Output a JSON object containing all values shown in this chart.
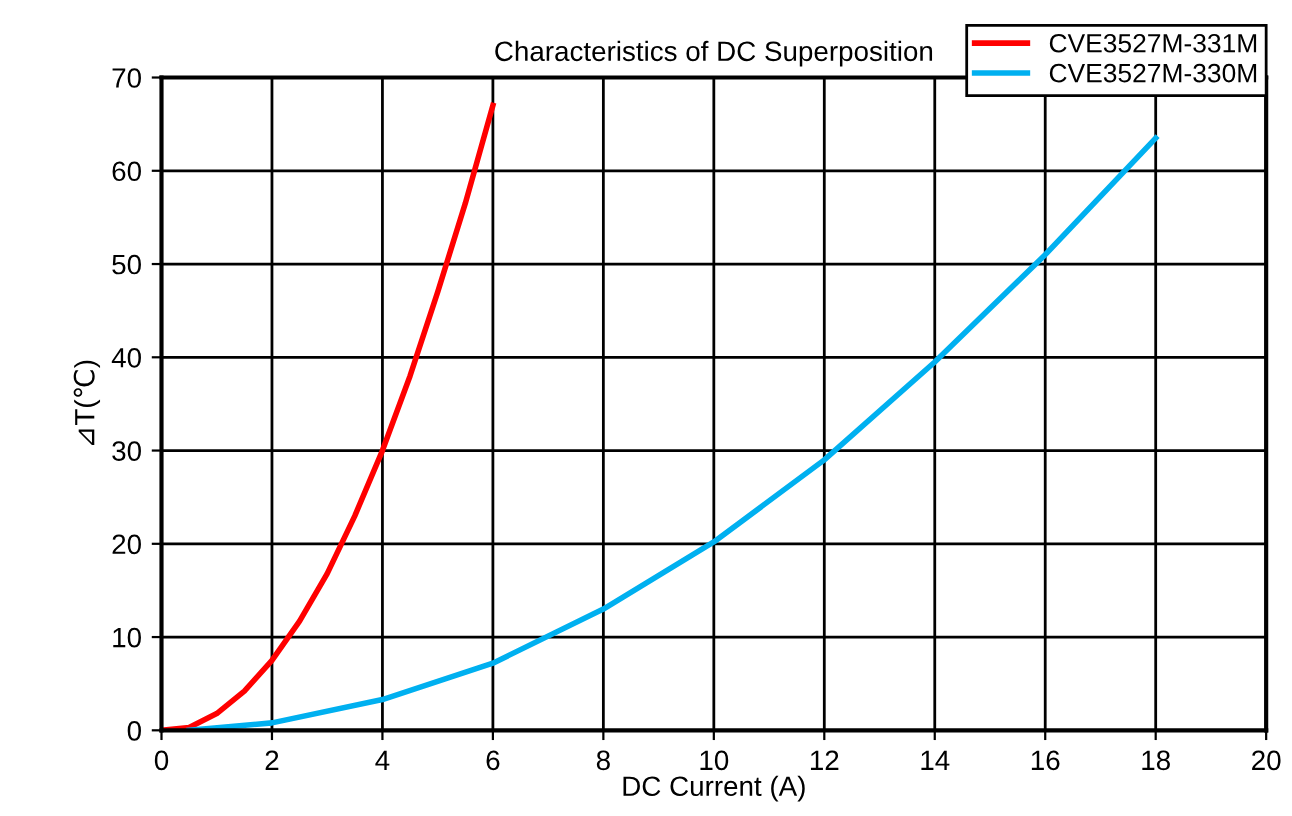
{
  "chart_data": {
    "type": "line",
    "title": "Characteristics of DC Superposition",
    "xlabel": "DC Current (A)",
    "ylabel": "⊿T(℃)",
    "xlim": [
      0,
      20
    ],
    "xticks": [
      0,
      2,
      4,
      6,
      8,
      10,
      12,
      14,
      16,
      18,
      20
    ],
    "ylim": [
      0,
      70
    ],
    "yticks": [
      0,
      10,
      20,
      30,
      40,
      50,
      60,
      70
    ],
    "grid": true,
    "legend": "top right",
    "marker": "none",
    "line_style": "solid",
    "series": [
      {
        "name": "CVE3527M-331M",
        "color": "#ff0000",
        "x": [
          0,
          0.5,
          1,
          1.5,
          2,
          2.5,
          3,
          3.5,
          4,
          4.5,
          5,
          5.5,
          6
        ],
        "values": [
          0,
          0.3,
          1.8,
          4.2,
          7.5,
          11.7,
          16.8,
          23,
          30,
          38,
          47,
          56.5,
          67
        ]
      },
      {
        "name": "CVE3527M-330M",
        "color": "#00b0f0",
        "x": [
          0.5,
          2,
          4,
          6,
          8,
          10,
          12,
          14,
          16,
          18
        ],
        "values": [
          0,
          0.8,
          3.3,
          7.2,
          13,
          20.2,
          29,
          39.5,
          51,
          63.5
        ]
      }
    ]
  }
}
